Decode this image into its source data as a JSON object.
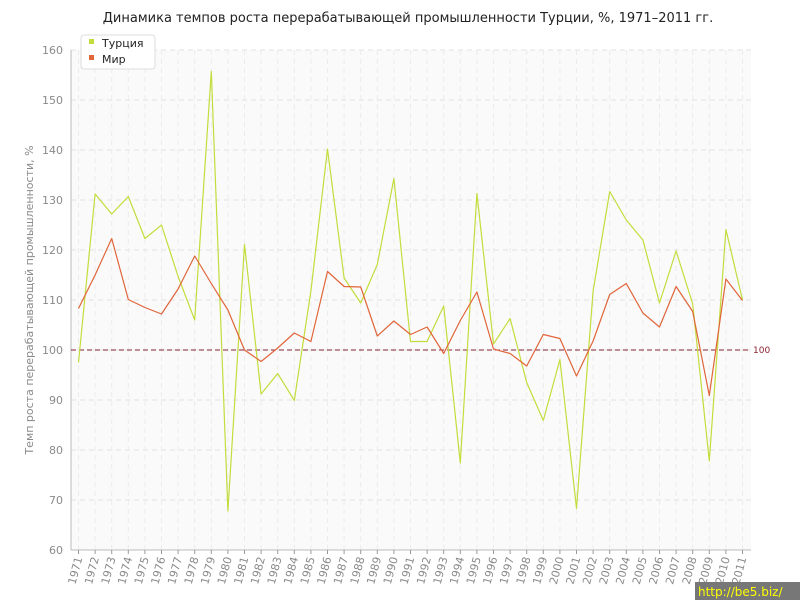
{
  "chart_data": {
    "type": "line",
    "title": "Динамика темпов роста перерабатывающей промышленности Турции, %, 1971–2011 гг.",
    "xlabel": "",
    "ylabel": "Темп роста перерабатывающей промышленности, %",
    "x": [
      1971,
      1972,
      1973,
      1974,
      1975,
      1976,
      1977,
      1978,
      1979,
      1980,
      1981,
      1982,
      1983,
      1984,
      1985,
      1986,
      1987,
      1988,
      1989,
      1990,
      1991,
      1992,
      1993,
      1994,
      1995,
      1996,
      1997,
      1998,
      1999,
      2000,
      2001,
      2002,
      2003,
      2004,
      2005,
      2006,
      2007,
      2008,
      2009,
      2010,
      2011
    ],
    "ylim": [
      60,
      160
    ],
    "yticks": [
      60,
      70,
      80,
      90,
      100,
      110,
      120,
      130,
      140,
      150,
      160
    ],
    "grid": true,
    "legend_position": "top-left",
    "series": [
      {
        "name": "Турция",
        "color": "#c4dc3c",
        "values": [
          97.5,
          131.2,
          127.2,
          130.7,
          122.3,
          125.0,
          114.7,
          106.0,
          155.7,
          67.8,
          121.1,
          91.2,
          95.3,
          89.9,
          111.8,
          140.2,
          114.4,
          109.4,
          117.1,
          134.3,
          101.7,
          101.7,
          108.8,
          77.4,
          131.3,
          101.2,
          106.3,
          93.5,
          85.9,
          98.1,
          68.3,
          111.8,
          131.7,
          126.0,
          122.0,
          109.4,
          119.8,
          109.2,
          77.8,
          124.1,
          110.0
        ]
      },
      {
        "name": "Мир",
        "color": "#e0653a",
        "values": [
          108.3,
          115.0,
          122.3,
          110.1,
          108.5,
          107.2,
          112.2,
          118.8,
          113.3,
          108.0,
          100.0,
          97.7,
          100.4,
          103.4,
          101.7,
          115.7,
          112.7,
          112.6,
          102.8,
          105.8,
          103.1,
          104.6,
          99.3,
          105.9,
          111.6,
          100.2,
          99.3,
          96.8,
          103.1,
          102.3,
          94.8,
          101.8,
          111.1,
          113.3,
          107.4,
          104.6,
          112.7,
          107.7,
          90.9,
          114.2,
          109.9
        ]
      }
    ],
    "reference_line": {
      "value": 100,
      "label": "100",
      "color": "#8b2232"
    }
  },
  "watermark": "http://be5.biz/"
}
